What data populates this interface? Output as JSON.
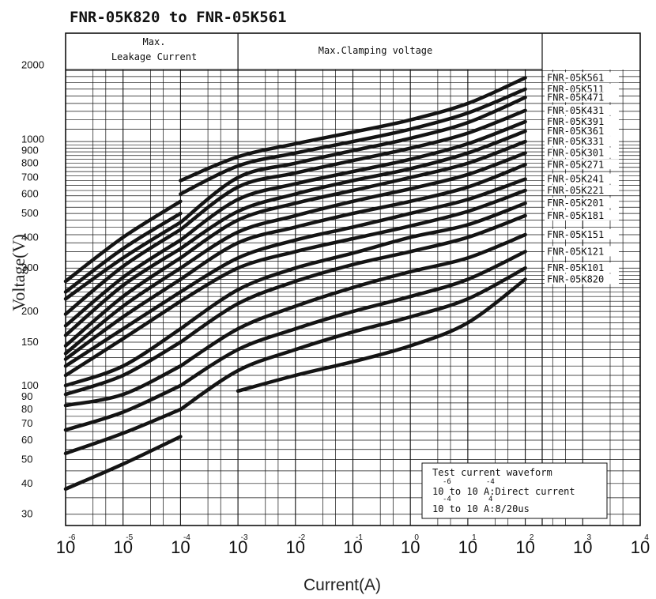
{
  "chart_data": {
    "type": "line",
    "title": "FNR-05K820 to FNR-05K561",
    "xlabel": "Current(A)",
    "ylabel": "Voltage(V)",
    "x_scale": "log",
    "y_scale": "log",
    "xlim": [
      1e-06,
      10000
    ],
    "ylim": [
      27,
      2700
    ],
    "grid": true,
    "x_tick_exponents": [
      "-6",
      "-5",
      "-4",
      "-3",
      "-2",
      "-1",
      "0",
      "1",
      "2",
      "3",
      "4"
    ],
    "y_ticks": [
      "2000",
      "1000",
      "900",
      "800",
      "700",
      "600",
      "500",
      "400",
      "300",
      "200",
      "150",
      "100",
      "90",
      "80",
      "70",
      "60",
      "50",
      "40",
      "30"
    ],
    "region_labels": {
      "leakage": "Max.\nLeakage Current",
      "clamping": "Max.Clamping voltage"
    },
    "note_lines": [
      "Test current waveform",
      "10 to 10 A:Direct current",
      "10 to 10 A:8/20us"
    ],
    "note_exponents": [
      [
        "-6",
        "-4"
      ],
      [
        "-4",
        "4"
      ]
    ],
    "series": [
      {
        "name": "FNR-05K561",
        "leak": [
          [
            1e-06,
            265
          ],
          [
            1e-05,
            400
          ],
          [
            0.0001,
            560
          ]
        ],
        "clamp": [
          [
            0.0001,
            680
          ],
          [
            0.001,
            850
          ],
          [
            0.01,
            960
          ],
          [
            0.1,
            1070
          ],
          [
            1,
            1200
          ],
          [
            10,
            1400
          ],
          [
            100,
            1780
          ]
        ]
      },
      {
        "name": "FNR-05K511",
        "leak": [
          [
            1e-06,
            240
          ],
          [
            1e-05,
            360
          ],
          [
            0.0001,
            500
          ]
        ],
        "clamp": [
          [
            0.0001,
            600
          ],
          [
            0.001,
            780
          ],
          [
            0.01,
            880
          ],
          [
            0.1,
            980
          ],
          [
            1,
            1100
          ],
          [
            10,
            1280
          ],
          [
            100,
            1600
          ]
        ]
      },
      {
        "name": "FNR-05K471",
        "leak": [
          [
            1e-06,
            225
          ],
          [
            1e-05,
            330
          ],
          [
            0.0001,
            460
          ]
        ],
        "clamp": [
          [
            0.0001,
            460
          ],
          [
            0.001,
            700
          ],
          [
            0.01,
            800
          ],
          [
            0.1,
            900
          ],
          [
            1,
            1010
          ],
          [
            10,
            1170
          ],
          [
            100,
            1480
          ]
        ]
      },
      {
        "name": "FNR-05K431",
        "leak": [
          [
            1e-06,
            195
          ],
          [
            1e-05,
            305
          ],
          [
            0.0001,
            430
          ]
        ],
        "clamp": [
          [
            0.0001,
            430
          ],
          [
            0.001,
            640
          ],
          [
            0.01,
            730
          ],
          [
            0.1,
            820
          ],
          [
            1,
            920
          ],
          [
            10,
            1060
          ],
          [
            100,
            1310
          ]
        ]
      },
      {
        "name": "FNR-05K391",
        "leak": [
          [
            1e-06,
            175
          ],
          [
            1e-05,
            275
          ],
          [
            0.0001,
            390
          ]
        ],
        "clamp": [
          [
            0.0001,
            390
          ],
          [
            0.001,
            570
          ],
          [
            0.01,
            660
          ],
          [
            0.1,
            740
          ],
          [
            1,
            830
          ],
          [
            10,
            960
          ],
          [
            100,
            1180
          ]
        ]
      },
      {
        "name": "FNR-05K361",
        "leak": [
          [
            1e-06,
            160
          ],
          [
            1e-05,
            255
          ],
          [
            0.0001,
            360
          ]
        ],
        "clamp": [
          [
            0.0001,
            360
          ],
          [
            0.001,
            510
          ],
          [
            0.01,
            600
          ],
          [
            0.1,
            680
          ],
          [
            1,
            760
          ],
          [
            10,
            880
          ],
          [
            100,
            1080
          ]
        ]
      },
      {
        "name": "FNR-05K331",
        "leak": [
          [
            1e-06,
            145
          ],
          [
            1e-05,
            230
          ],
          [
            0.0001,
            330
          ]
        ],
        "clamp": [
          [
            0.0001,
            330
          ],
          [
            0.001,
            470
          ],
          [
            0.01,
            550
          ],
          [
            0.1,
            620
          ],
          [
            1,
            700
          ],
          [
            10,
            800
          ],
          [
            100,
            980
          ]
        ]
      },
      {
        "name": "FNR-05K301",
        "leak": [
          [
            1e-06,
            135
          ],
          [
            1e-05,
            210
          ],
          [
            0.0001,
            300
          ]
        ],
        "clamp": [
          [
            0.0001,
            300
          ],
          [
            0.001,
            420
          ],
          [
            0.01,
            490
          ],
          [
            0.1,
            560
          ],
          [
            1,
            630
          ],
          [
            10,
            720
          ],
          [
            100,
            880
          ]
        ]
      },
      {
        "name": "FNR-05K271",
        "leak": [
          [
            1e-06,
            128
          ],
          [
            1e-05,
            190
          ],
          [
            0.0001,
            270
          ]
        ],
        "clamp": [
          [
            0.0001,
            270
          ],
          [
            0.001,
            380
          ],
          [
            0.01,
            440
          ],
          [
            0.1,
            500
          ],
          [
            1,
            560
          ],
          [
            10,
            640
          ],
          [
            100,
            790
          ]
        ]
      },
      {
        "name": "FNR-05K241",
        "leak": [
          [
            1e-06,
            120
          ],
          [
            1e-05,
            170
          ],
          [
            0.0001,
            240
          ]
        ],
        "clamp": [
          [
            0.0001,
            240
          ],
          [
            0.001,
            330
          ],
          [
            0.01,
            390
          ],
          [
            0.1,
            440
          ],
          [
            1,
            500
          ],
          [
            10,
            570
          ],
          [
            100,
            690
          ]
        ]
      },
      {
        "name": "FNR-05K221",
        "leak": [
          [
            1e-06,
            110
          ],
          [
            1e-05,
            155
          ],
          [
            0.0001,
            220
          ]
        ],
        "clamp": [
          [
            0.0001,
            220
          ],
          [
            0.001,
            300
          ],
          [
            0.01,
            350
          ],
          [
            0.1,
            395
          ],
          [
            1,
            445
          ],
          [
            10,
            510
          ],
          [
            100,
            620
          ]
        ]
      },
      {
        "name": "FNR-05K201",
        "leak": [
          [
            1e-06,
            100
          ],
          [
            1e-05,
            120
          ],
          [
            0.0001,
            170
          ]
        ],
        "clamp": [
          [
            0.0001,
            170
          ],
          [
            0.001,
            245
          ],
          [
            0.01,
            300
          ],
          [
            0.1,
            345
          ],
          [
            1,
            400
          ],
          [
            10,
            450
          ],
          [
            100,
            550
          ]
        ]
      },
      {
        "name": "FNR-05K181",
        "leak": [
          [
            1e-06,
            92
          ],
          [
            1e-05,
            110
          ],
          [
            0.0001,
            150
          ]
        ],
        "clamp": [
          [
            0.0001,
            150
          ],
          [
            0.001,
            215
          ],
          [
            0.01,
            265
          ],
          [
            0.1,
            310
          ],
          [
            1,
            350
          ],
          [
            10,
            400
          ],
          [
            100,
            490
          ]
        ]
      },
      {
        "name": "FNR-05K151",
        "leak": [
          [
            1e-06,
            83
          ],
          [
            1e-05,
            92
          ],
          [
            0.0001,
            120
          ]
        ],
        "clamp": [
          [
            0.0001,
            120
          ],
          [
            0.001,
            170
          ],
          [
            0.01,
            210
          ],
          [
            0.1,
            250
          ],
          [
            1,
            290
          ],
          [
            10,
            330
          ],
          [
            100,
            410
          ]
        ]
      },
      {
        "name": "FNR-05K121",
        "leak": [
          [
            1e-06,
            66
          ],
          [
            1e-05,
            78
          ],
          [
            0.0001,
            100
          ]
        ],
        "clamp": [
          [
            0.0001,
            100
          ],
          [
            0.001,
            140
          ],
          [
            0.01,
            170
          ],
          [
            0.1,
            200
          ],
          [
            1,
            230
          ],
          [
            10,
            270
          ],
          [
            100,
            350
          ]
        ]
      },
      {
        "name": "FNR-05K101",
        "leak": [
          [
            1e-06,
            53
          ],
          [
            1e-05,
            64
          ],
          [
            0.0001,
            80
          ]
        ],
        "clamp": [
          [
            0.0001,
            80
          ],
          [
            0.001,
            115
          ],
          [
            0.01,
            140
          ],
          [
            0.1,
            165
          ],
          [
            1,
            190
          ],
          [
            10,
            225
          ],
          [
            100,
            300
          ]
        ]
      },
      {
        "name": "FNR-05K820",
        "leak": [
          [
            1e-06,
            38
          ],
          [
            1e-05,
            48
          ],
          [
            0.0001,
            62
          ]
        ],
        "clamp": [
          [
            0.001,
            95
          ],
          [
            0.01,
            110
          ],
          [
            0.1,
            125
          ],
          [
            1,
            145
          ],
          [
            10,
            180
          ],
          [
            100,
            270
          ]
        ]
      }
    ]
  }
}
